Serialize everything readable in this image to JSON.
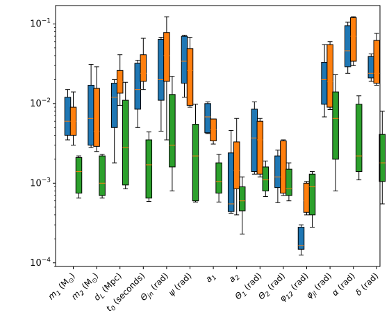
{
  "chart_data": {
    "type": "box",
    "y_scale": "log",
    "ylim": [
      9e-05,
      0.17
    ],
    "y_ticks": [
      {
        "value": 0.0001,
        "base": "10",
        "exp": "−4"
      },
      {
        "value": 0.001,
        "base": "10",
        "exp": "−3"
      },
      {
        "value": 0.01,
        "base": "10",
        "exp": "−2"
      },
      {
        "value": 0.1,
        "base": "10",
        "exp": "−1"
      }
    ],
    "grid": false,
    "legend": "none",
    "categories": [
      "m₁ (M☉)",
      "m₂ (M☉)",
      "dL (Mpc)",
      "t₀ (seconds)",
      "Θjn (rad)",
      "ψ (rad)",
      "a₁",
      "a₂",
      "Θ₁ (rad)",
      "Θ₂ (rad)",
      "φ₁₂ (rad)",
      "φjl (rad)",
      "α (rad)",
      "δ (rad)"
    ],
    "category_labels": [
      {
        "main": "m",
        "sub": "1",
        "suffix": " (M",
        "sun": true,
        "end": ")"
      },
      {
        "main": "m",
        "sub": "2",
        "suffix": " (M",
        "sun": true,
        "end": ")"
      },
      {
        "main": "d",
        "sub": "L",
        "suffix": " (Mpc)",
        "sun": false,
        "end": ""
      },
      {
        "main": "t",
        "sub": "0",
        "suffix": " (seconds)",
        "sun": false,
        "end": ""
      },
      {
        "main": "Θ",
        "sub": "jn",
        "suffix": " (rad)",
        "sun": false,
        "end": ""
      },
      {
        "main": "ψ",
        "sub": "",
        "suffix": " (rad)",
        "sun": false,
        "end": ""
      },
      {
        "main": "a",
        "sub": "1",
        "suffix": "",
        "sun": false,
        "end": ""
      },
      {
        "main": "a",
        "sub": "2",
        "suffix": "",
        "sun": false,
        "end": ""
      },
      {
        "main": "Θ",
        "sub": "1",
        "suffix": " (rad)",
        "sun": false,
        "end": ""
      },
      {
        "main": "Θ",
        "sub": "2",
        "suffix": " (rad)",
        "sun": false,
        "end": ""
      },
      {
        "main": "φ",
        "sub": "12",
        "suffix": " (rad)",
        "sun": false,
        "end": ""
      },
      {
        "main": "φ",
        "sub": "jl",
        "suffix": " (rad)",
        "sun": false,
        "end": ""
      },
      {
        "main": "α",
        "sub": "",
        "suffix": " (rad)",
        "sun": false,
        "end": ""
      },
      {
        "main": "δ",
        "sub": "",
        "suffix": " (rad)",
        "sun": false,
        "end": ""
      }
    ],
    "median_color": "#ff7f0e",
    "series": [
      {
        "color": "#1f77b4",
        "boxes": [
          {
            "whislo": 0.0035,
            "q1": 0.004,
            "med": 0.006,
            "q3": 0.012,
            "whishi": 0.015
          },
          {
            "whislo": 0.0028,
            "q1": 0.003,
            "med": 0.0065,
            "q3": 0.017,
            "whishi": 0.031
          },
          {
            "whislo": 0.0018,
            "q1": 0.005,
            "med": 0.012,
            "q3": 0.018,
            "whishi": 0.02
          },
          {
            "whislo": 0.005,
            "q1": 0.0085,
            "med": 0.015,
            "q3": 0.032,
            "whishi": 0.035
          },
          {
            "whislo": 0.0045,
            "q1": 0.011,
            "med": 0.02,
            "q3": 0.064,
            "whishi": 0.068
          },
          {
            "whislo": 0.012,
            "q1": 0.018,
            "med": 0.034,
            "q3": 0.07,
            "whishi": 0.072
          },
          {
            "whislo": 0.0042,
            "q1": 0.0043,
            "med": 0.0068,
            "q3": 0.01,
            "whishi": 0.0105
          },
          {
            "whislo": 0.00042,
            "q1": 0.00044,
            "med": 0.00055,
            "q3": 0.0024,
            "whishi": 0.0046
          },
          {
            "whislo": 0.0013,
            "q1": 0.0014,
            "med": 0.0037,
            "q3": 0.0085,
            "whishi": 0.0105
          },
          {
            "whislo": 0.00057,
            "q1": 0.00088,
            "med": 0.0012,
            "q3": 0.0022,
            "whishi": 0.0026
          },
          {
            "whislo": 0.000125,
            "q1": 0.000148,
            "med": 0.000165,
            "q3": 0.00028,
            "whishi": 0.0003
          },
          {
            "whislo": 0.0068,
            "q1": 0.0098,
            "med": 0.02,
            "q3": 0.033,
            "whishi": 0.055
          },
          {
            "whislo": 0.024,
            "q1": 0.029,
            "med": 0.046,
            "q3": 0.095,
            "whishi": 0.105
          },
          {
            "whislo": 0.019,
            "q1": 0.021,
            "med": 0.024,
            "q3": 0.039,
            "whishi": 0.042
          }
        ]
      },
      {
        "color": "#ff7f0e",
        "boxes": [
          {
            "whislo": 0.003,
            "q1": 0.004,
            "med": 0.006,
            "q3": 0.009,
            "whishi": 0.014
          },
          {
            "whislo": 0.0025,
            "q1": 0.0029,
            "med": 0.0045,
            "q3": 0.0155,
            "whishi": 0.029
          },
          {
            "whislo": 0.0095,
            "q1": 0.0135,
            "med": 0.019,
            "q3": 0.026,
            "whishi": 0.041
          },
          {
            "whislo": 0.015,
            "q1": 0.019,
            "med": 0.024,
            "q3": 0.041,
            "whishi": 0.066
          },
          {
            "whislo": 0.0035,
            "q1": 0.019,
            "med": 0.04,
            "q3": 0.078,
            "whishi": 0.123
          },
          {
            "whislo": 0.009,
            "q1": 0.0095,
            "med": 0.026,
            "q3": 0.049,
            "whishi": 0.068
          },
          {
            "whislo": 0.0031,
            "q1": 0.0034,
            "med": 0.0047,
            "q3": 0.0064,
            "whishi": 0.0064
          },
          {
            "whislo": 0.0004,
            "q1": 0.00085,
            "med": 0.00145,
            "q3": 0.0033,
            "whishi": 0.0065
          },
          {
            "whislo": 0.0012,
            "q1": 0.0013,
            "med": 0.0035,
            "q3": 0.006,
            "whishi": 0.0065
          },
          {
            "whislo": 0.0007,
            "q1": 0.00075,
            "med": 0.0012,
            "q3": 0.0034,
            "whishi": 0.0035
          },
          {
            "whislo": 0.0004,
            "q1": 0.00043,
            "med": 0.0006,
            "q3": 0.001,
            "whishi": 0.00105
          },
          {
            "whislo": 0.0084,
            "q1": 0.009,
            "med": 0.019,
            "q3": 0.055,
            "whishi": 0.06
          },
          {
            "whislo": 0.03,
            "q1": 0.034,
            "med": 0.07,
            "q3": 0.12,
            "whishi": 0.123
          },
          {
            "whislo": 0.017,
            "q1": 0.018,
            "med": 0.024,
            "q3": 0.062,
            "whishi": 0.076
          }
        ]
      },
      {
        "color": "#2ca02c",
        "boxes": [
          {
            "whislo": 0.00065,
            "q1": 0.00075,
            "med": 0.0014,
            "q3": 0.0021,
            "whishi": 0.0022
          },
          {
            "whislo": 0.00065,
            "q1": 0.0007,
            "med": 0.001,
            "q3": 0.0022,
            "whishi": 0.0023
          },
          {
            "whislo": 0.00085,
            "q1": 0.00095,
            "med": 0.0028,
            "q3": 0.011,
            "whishi": 0.0185
          },
          {
            "whislo": 0.00059,
            "q1": 0.00065,
            "med": 0.0017,
            "q3": 0.0035,
            "whishi": 0.0044
          },
          {
            "whislo": 0.0008,
            "q1": 0.0016,
            "med": 0.003,
            "q3": 0.013,
            "whishi": 0.022
          },
          {
            "whislo": 0.00058,
            "q1": 0.0006,
            "med": 0.0022,
            "q3": 0.0055,
            "whishi": 0.0098
          },
          {
            "whislo": 0.00058,
            "q1": 0.00075,
            "med": 0.00105,
            "q3": 0.0018,
            "whishi": 0.0023
          },
          {
            "whislo": 0.00023,
            "q1": 0.00045,
            "med": 0.0006,
            "q3": 0.0009,
            "whishi": 0.0012
          },
          {
            "whislo": 0.00068,
            "q1": 0.0008,
            "med": 0.0011,
            "q3": 0.0016,
            "whishi": 0.0019
          },
          {
            "whislo": 0.0006,
            "q1": 0.0007,
            "med": 0.00085,
            "q3": 0.0015,
            "whishi": 0.0018
          },
          {
            "whislo": 0.00028,
            "q1": 0.0004,
            "med": 0.0009,
            "q3": 0.0013,
            "whishi": 0.0014
          },
          {
            "whislo": 0.0008,
            "q1": 0.002,
            "med": 0.0065,
            "q3": 0.014,
            "whishi": 0.023
          },
          {
            "whislo": 0.0011,
            "q1": 0.0014,
            "med": 0.0022,
            "q3": 0.0098,
            "whishi": 0.0125
          },
          {
            "whislo": 0.00055,
            "q1": 0.00105,
            "med": 0.0018,
            "q3": 0.0041,
            "whishi": 0.008
          }
        ]
      }
    ]
  }
}
